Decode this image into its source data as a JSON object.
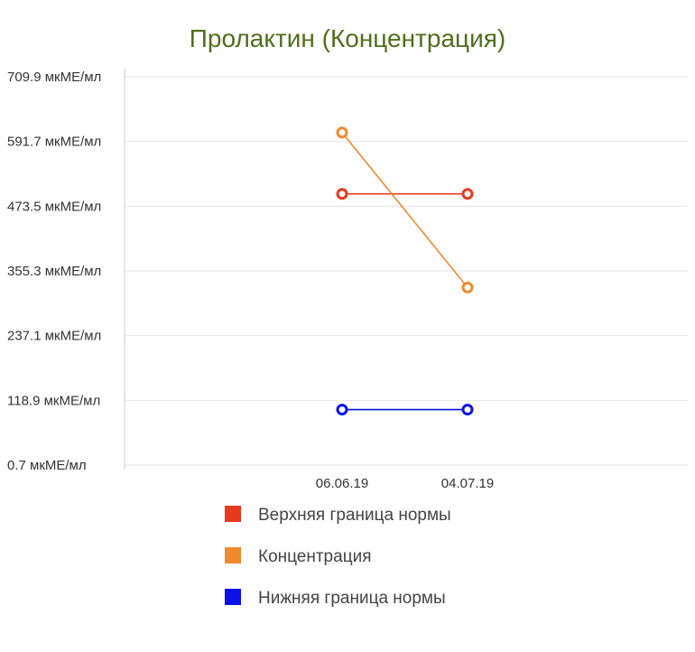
{
  "chart_data": {
    "type": "line",
    "title": "Пролактин (Концентрация)",
    "categories": [
      "06.06.19",
      "04.07.19"
    ],
    "y_tick_labels": [
      "709.9 мкМЕ/мл",
      "591.7 мкМЕ/мл",
      "473.5 мкМЕ/мл",
      "355.3 мкМЕ/мл",
      "237.1 мкМЕ/мл",
      "118.9 мкМЕ/мл",
      "0.7 мкМЕ/мл"
    ],
    "y_ticks": [
      709.9,
      591.7,
      473.5,
      355.3,
      237.1,
      118.9,
      0.7
    ],
    "ylim": [
      0.7,
      709.9
    ],
    "grid": true,
    "legend_position": "bottom",
    "series": [
      {
        "name": "Верхняя граница нормы",
        "color": "#e8391f",
        "values": [
          496,
          496
        ]
      },
      {
        "name": "Концентрация",
        "color": "#f08a2e",
        "values": [
          608,
          325
        ]
      },
      {
        "name": "Нижняя граница нормы",
        "color": "#0a12e8",
        "values": [
          102,
          102
        ]
      }
    ]
  }
}
